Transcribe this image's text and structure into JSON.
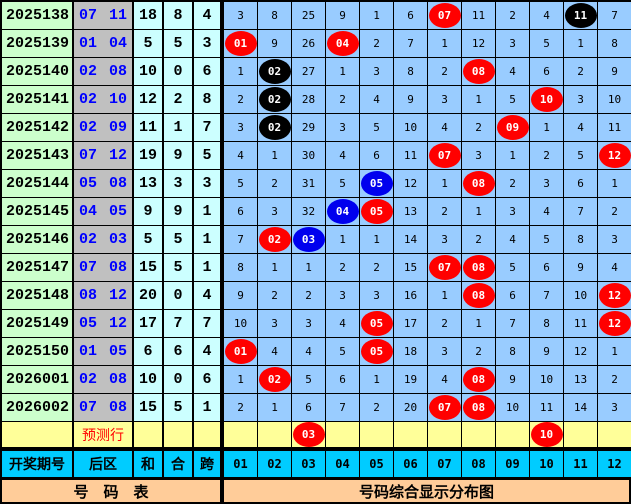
{
  "colors": {
    "red": "#ff0000",
    "black": "#000000",
    "blue": "#0000ee",
    "period_bg": "#ccffcc",
    "back_bg": "#c0c0c0",
    "stat_bg": "#ccffff",
    "num_bg": "#99ccff",
    "pred_bg": "#ffff99",
    "header_bg": "#00ccff",
    "footer_bg": "#ffcc99"
  },
  "rows": [
    {
      "period": "2025138",
      "back": [
        "07",
        "11"
      ],
      "sum": "18",
      "he": "8",
      "span": "4",
      "cells": [
        "3",
        "8",
        "25",
        "9",
        "1",
        "6",
        {
          "v": "07",
          "c": "red"
        },
        "11",
        "2",
        "4",
        {
          "v": "11",
          "c": "black"
        },
        "7"
      ]
    },
    {
      "period": "2025139",
      "back": [
        "01",
        "04"
      ],
      "sum": "5",
      "he": "5",
      "span": "3",
      "cells": [
        {
          "v": "01",
          "c": "red"
        },
        "9",
        "26",
        {
          "v": "04",
          "c": "red"
        },
        "2",
        "7",
        "1",
        "12",
        "3",
        "5",
        "1",
        "8"
      ]
    },
    {
      "period": "2025140",
      "back": [
        "02",
        "08"
      ],
      "sum": "10",
      "he": "0",
      "span": "6",
      "cells": [
        "1",
        {
          "v": "02",
          "c": "black"
        },
        "27",
        "1",
        "3",
        "8",
        "2",
        {
          "v": "08",
          "c": "red"
        },
        "4",
        "6",
        "2",
        "9"
      ]
    },
    {
      "period": "2025141",
      "back": [
        "02",
        "10"
      ],
      "sum": "12",
      "he": "2",
      "span": "8",
      "cells": [
        "2",
        {
          "v": "02",
          "c": "black"
        },
        "28",
        "2",
        "4",
        "9",
        "3",
        "1",
        "5",
        {
          "v": "10",
          "c": "red"
        },
        "3",
        "10"
      ]
    },
    {
      "period": "2025142",
      "back": [
        "02",
        "09"
      ],
      "sum": "11",
      "he": "1",
      "span": "7",
      "cells": [
        "3",
        {
          "v": "02",
          "c": "black"
        },
        "29",
        "3",
        "5",
        "10",
        "4",
        "2",
        {
          "v": "09",
          "c": "red"
        },
        "1",
        "4",
        "11"
      ]
    },
    {
      "period": "2025143",
      "back": [
        "07",
        "12"
      ],
      "sum": "19",
      "he": "9",
      "span": "5",
      "cells": [
        "4",
        "1",
        "30",
        "4",
        "6",
        "11",
        {
          "v": "07",
          "c": "red"
        },
        "3",
        "1",
        "2",
        "5",
        {
          "v": "12",
          "c": "red"
        }
      ]
    },
    {
      "period": "2025144",
      "back": [
        "05",
        "08"
      ],
      "sum": "13",
      "he": "3",
      "span": "3",
      "cells": [
        "5",
        "2",
        "31",
        "5",
        {
          "v": "05",
          "c": "blue"
        },
        "12",
        "1",
        {
          "v": "08",
          "c": "red"
        },
        "2",
        "3",
        "6",
        "1"
      ]
    },
    {
      "period": "2025145",
      "back": [
        "04",
        "05"
      ],
      "sum": "9",
      "he": "9",
      "span": "1",
      "cells": [
        "6",
        "3",
        "32",
        {
          "v": "04",
          "c": "blue"
        },
        {
          "v": "05",
          "c": "red"
        },
        "13",
        "2",
        "1",
        "3",
        "4",
        "7",
        "2"
      ]
    },
    {
      "period": "2025146",
      "back": [
        "02",
        "03"
      ],
      "sum": "5",
      "he": "5",
      "span": "1",
      "cells": [
        "7",
        {
          "v": "02",
          "c": "red"
        },
        {
          "v": "03",
          "c": "blue"
        },
        "1",
        "1",
        "14",
        "3",
        "2",
        "4",
        "5",
        "8",
        "3"
      ]
    },
    {
      "period": "2025147",
      "back": [
        "07",
        "08"
      ],
      "sum": "15",
      "he": "5",
      "span": "1",
      "cells": [
        "8",
        "1",
        "1",
        "2",
        "2",
        "15",
        {
          "v": "07",
          "c": "red"
        },
        {
          "v": "08",
          "c": "red"
        },
        "5",
        "6",
        "9",
        "4"
      ]
    },
    {
      "period": "2025148",
      "back": [
        "08",
        "12"
      ],
      "sum": "20",
      "he": "0",
      "span": "4",
      "cells": [
        "9",
        "2",
        "2",
        "3",
        "3",
        "16",
        "1",
        {
          "v": "08",
          "c": "red"
        },
        "6",
        "7",
        "10",
        {
          "v": "12",
          "c": "red"
        }
      ]
    },
    {
      "period": "2025149",
      "back": [
        "05",
        "12"
      ],
      "sum": "17",
      "he": "7",
      "span": "7",
      "cells": [
        "10",
        "3",
        "3",
        "4",
        {
          "v": "05",
          "c": "red"
        },
        "17",
        "2",
        "1",
        "7",
        "8",
        "11",
        {
          "v": "12",
          "c": "red"
        }
      ]
    },
    {
      "period": "2025150",
      "back": [
        "01",
        "05"
      ],
      "sum": "6",
      "he": "6",
      "span": "4",
      "cells": [
        {
          "v": "01",
          "c": "red"
        },
        "4",
        "4",
        "5",
        {
          "v": "05",
          "c": "red"
        },
        "18",
        "3",
        "2",
        "8",
        "9",
        "12",
        "1"
      ]
    },
    {
      "period": "2026001",
      "back": [
        "02",
        "08"
      ],
      "sum": "10",
      "he": "0",
      "span": "6",
      "cells": [
        "1",
        {
          "v": "02",
          "c": "red"
        },
        "5",
        "6",
        "1",
        "19",
        "4",
        {
          "v": "08",
          "c": "red"
        },
        "9",
        "10",
        "13",
        "2"
      ]
    },
    {
      "period": "2026002",
      "back": [
        "07",
        "08"
      ],
      "sum": "15",
      "he": "5",
      "span": "1",
      "cells": [
        "2",
        "1",
        "6",
        "7",
        "2",
        "20",
        {
          "v": "07",
          "c": "red"
        },
        {
          "v": "08",
          "c": "red"
        },
        "10",
        "11",
        "14",
        "3"
      ]
    }
  ],
  "prediction": {
    "label": "预测行",
    "cells": [
      "",
      "",
      {
        "v": "03",
        "c": "red"
      },
      "",
      "",
      "",
      "",
      "",
      "",
      {
        "v": "10",
        "c": "red"
      },
      "",
      ""
    ]
  },
  "header": {
    "period": "开奖期号",
    "back": "后区",
    "sum": "和",
    "he": "合",
    "span": "跨",
    "numbers": [
      "01",
      "02",
      "03",
      "04",
      "05",
      "06",
      "07",
      "08",
      "09",
      "10",
      "11",
      "12"
    ]
  },
  "footer": {
    "left": "号　码　表",
    "right": "号码综合显示分布图"
  }
}
